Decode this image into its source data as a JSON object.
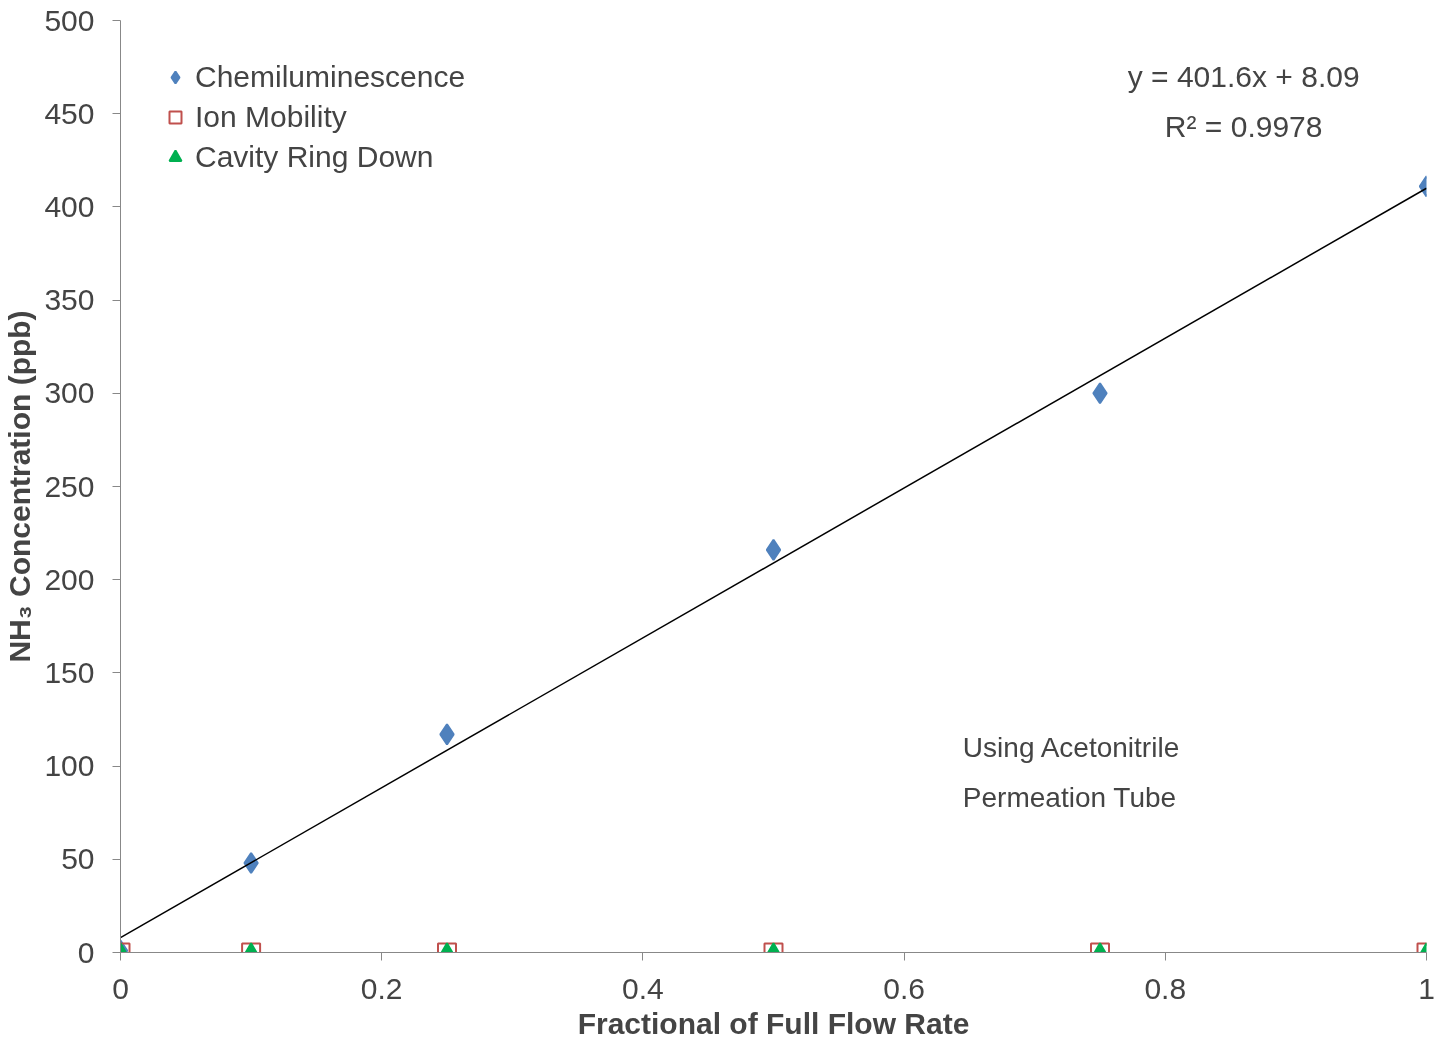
{
  "chart_data": {
    "type": "scatter",
    "xlabel": "Fractional of Full Flow Rate",
    "ylabel": "NH₃ Concentration (ppb)",
    "annotations": [
      "y = 401.6x + 8.09\nR² = 0.9978",
      "Using Acetonitrile\nPermeation Tube"
    ],
    "series": [
      {
        "name": "Chemiluminescence",
        "color": "#4f81bd",
        "marker": "diamond",
        "x": [
          0,
          0.1,
          0.25,
          0.5,
          0.75,
          1
        ],
        "values": [
          1,
          48,
          117,
          216,
          300,
          411
        ]
      },
      {
        "name": "Ion Mobility",
        "color": "#c0504d",
        "marker": "square",
        "x": [
          0,
          0.1,
          0.25,
          0.5,
          0.75,
          1
        ],
        "values": [
          0,
          0,
          0,
          0,
          0,
          0
        ]
      },
      {
        "name": "Cavity Ring Down",
        "color": "#00b050",
        "marker": "triangle",
        "x": [
          0,
          0.1,
          0.25,
          0.5,
          0.75,
          1
        ],
        "values": [
          0,
          0,
          0,
          0,
          0,
          0
        ]
      },
      {
        "type": "line",
        "color": "#000000",
        "x": [
          0,
          1
        ],
        "values": [
          8,
          410
        ]
      }
    ],
    "xlim": [
      0,
      1
    ],
    "xticks": [
      0,
      0.2,
      0.4,
      0.6,
      0.8,
      1
    ],
    "ylim": [
      0,
      500
    ],
    "yticks": [
      0,
      50,
      100,
      150,
      200,
      250,
      300,
      350,
      400,
      450,
      500
    ],
    "grid": false,
    "legend": "top left"
  }
}
